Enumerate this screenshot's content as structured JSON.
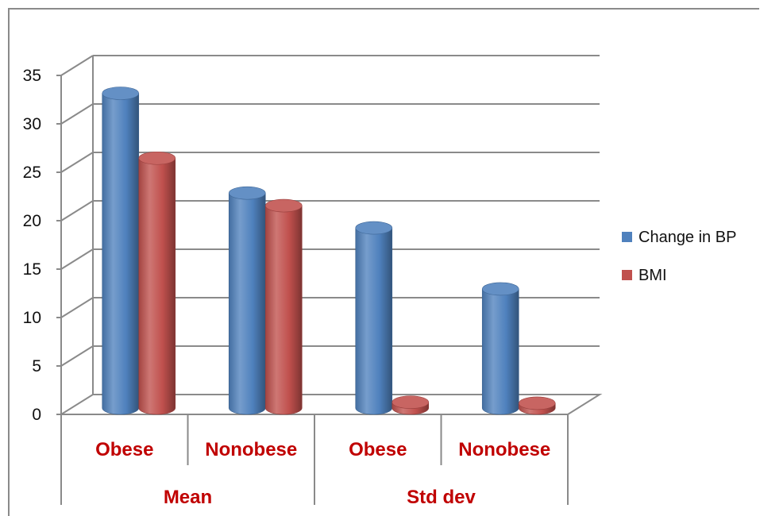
{
  "chart_data": {
    "type": "bar",
    "title": "",
    "xlabel": "",
    "ylabel": "",
    "ylim": [
      0,
      35
    ],
    "yticks": [
      0,
      5,
      10,
      15,
      20,
      25,
      30,
      35
    ],
    "grid": true,
    "legend_position": "right",
    "categories": [
      "Obese",
      "Nonobese",
      "Obese",
      "Nonobese"
    ],
    "groups": [
      {
        "label": "Mean",
        "categories": [
          "Obese",
          "Nonobese"
        ]
      },
      {
        "label": "Std dev",
        "categories": [
          "Obese",
          "Nonobese"
        ]
      }
    ],
    "series": [
      {
        "name": "Change in BP",
        "color": "#4f81bd",
        "values": [
          32.5,
          22.2,
          18.6,
          12.3
        ]
      },
      {
        "name": "BMI",
        "color": "#c0504d",
        "values": [
          25.8,
          20.9,
          0.6,
          0.5
        ]
      }
    ],
    "category_label_color": "#c00000"
  }
}
